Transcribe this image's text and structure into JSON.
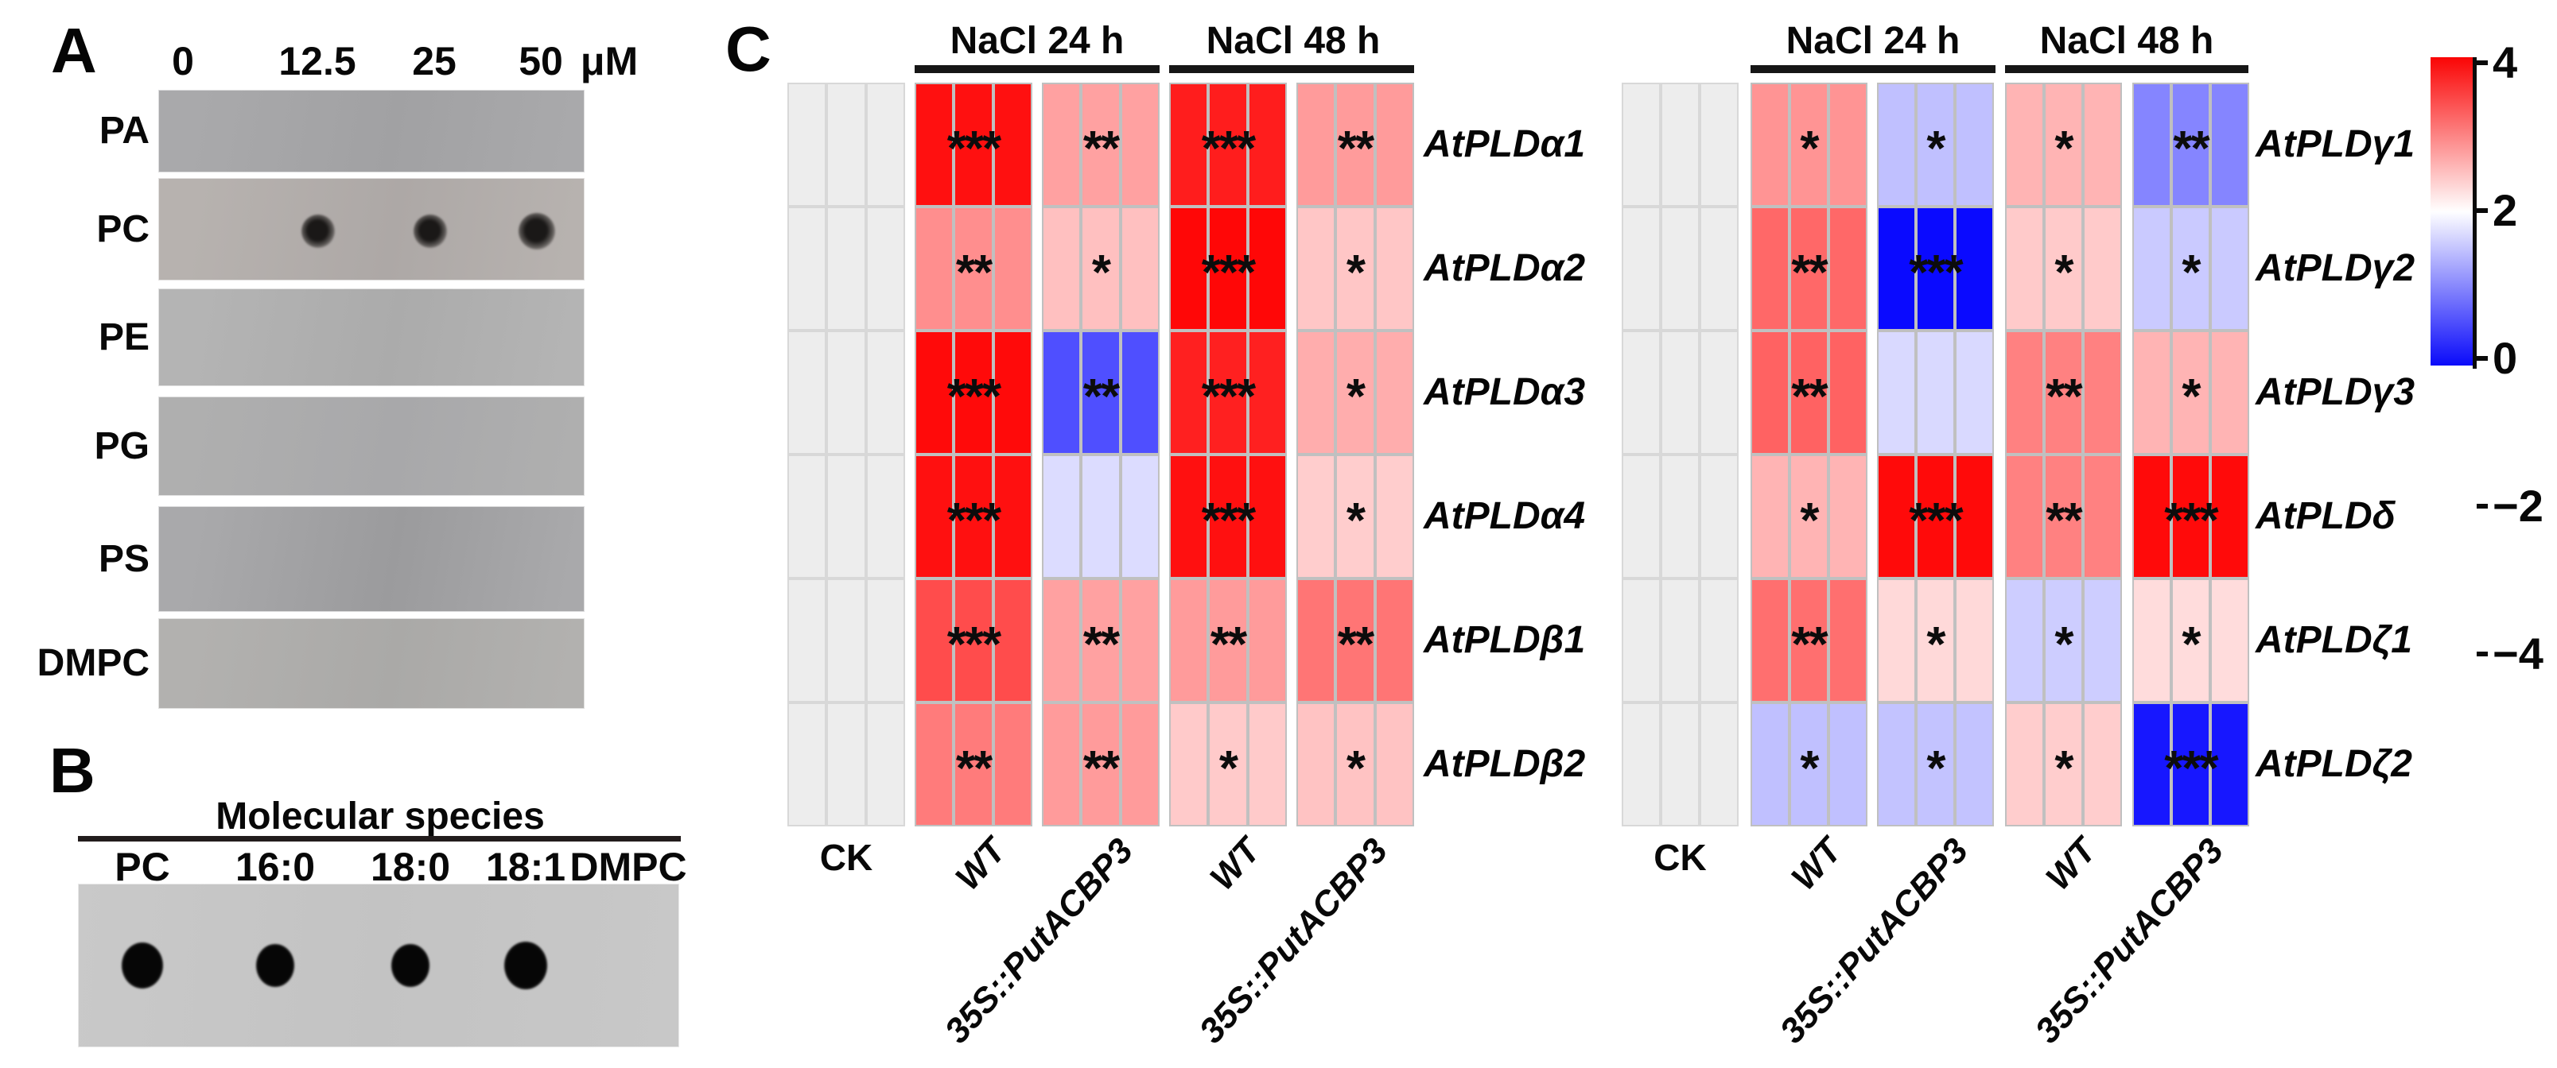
{
  "panel_a": {
    "label": "A",
    "unit_label": "μM",
    "concentrations": [
      "0",
      "12.5",
      "25",
      "50"
    ],
    "rows": [
      {
        "name": "PA",
        "dot_concentrations": []
      },
      {
        "name": "PC",
        "dot_concentrations": [
          "12.5",
          "25",
          "50"
        ]
      },
      {
        "name": "PE",
        "dot_concentrations": []
      },
      {
        "name": "PG",
        "dot_concentrations": []
      },
      {
        "name": "PS",
        "dot_concentrations": []
      },
      {
        "name": "DMPC",
        "dot_concentrations": []
      }
    ]
  },
  "panel_b": {
    "label": "B",
    "title": "Molecular species",
    "columns": [
      "PC",
      "16:0",
      "18:0",
      "18:1",
      "DMPC"
    ],
    "dot_columns": [
      "PC",
      "16:0",
      "18:0",
      "18:1"
    ]
  },
  "panel_c": {
    "label": "C",
    "condition_headers": [
      "NaCl 24 h",
      "NaCl 48 h"
    ],
    "bottom_labels": [
      "CK",
      "WT",
      "35S::PutACBP3",
      "WT",
      "35S::PutACBP3"
    ],
    "baseline_color": "#ededed",
    "colorbar": {
      "tick_labels": [
        "4",
        "2",
        "0",
        "−2",
        "−4"
      ],
      "tick_values": [
        4,
        2,
        0,
        -2,
        -4
      ],
      "max_color": "#fa0505",
      "mid_color": "#ffffff",
      "min_color": "#0a0afa"
    }
  },
  "chart_data": [
    {
      "type": "heatmap",
      "position": "left",
      "value_range": [
        -4,
        4
      ],
      "replicates_per_cell": 3,
      "columns": [
        "CK",
        "WT (NaCl 24 h)",
        "35S::PutACBP3 (NaCl 24 h)",
        "WT (NaCl 48 h)",
        "35S::PutACBP3 (NaCl 48 h)"
      ],
      "rows": [
        "AtPLDα1",
        "AtPLDα2",
        "AtPLDα3",
        "AtPLDα4",
        "AtPLDβ1",
        "AtPLDβ2"
      ],
      "values": [
        [
          null,
          3.8,
          1.5,
          3.6,
          1.6
        ],
        [
          null,
          1.8,
          1.0,
          3.95,
          0.9
        ],
        [
          null,
          3.9,
          -2.8,
          3.55,
          1.3
        ],
        [
          null,
          3.8,
          -0.55,
          3.8,
          0.8
        ],
        [
          null,
          2.85,
          1.5,
          1.6,
          2.2
        ],
        [
          null,
          2.1,
          1.6,
          0.85,
          0.95
        ]
      ],
      "significance": [
        [
          "",
          "***",
          "**",
          "***",
          "**"
        ],
        [
          "",
          "**",
          "*",
          "***",
          "*"
        ],
        [
          "",
          "***",
          "**",
          "***",
          "*"
        ],
        [
          "",
          "***",
          "",
          "***",
          "*"
        ],
        [
          "",
          "***",
          "**",
          "**",
          "**"
        ],
        [
          "",
          "**",
          "**",
          "*",
          "*"
        ]
      ]
    },
    {
      "type": "heatmap",
      "position": "right",
      "value_range": [
        -4,
        4
      ],
      "replicates_per_cell": 3,
      "columns": [
        "CK",
        "WT (NaCl 24 h)",
        "35S::PutACBP3 (NaCl 24 h)",
        "WT (NaCl 48 h)",
        "35S::PutACBP3 (NaCl 48 h)"
      ],
      "rows": [
        "AtPLDγ1",
        "AtPLDγ2",
        "AtPLDγ3",
        "AtPLDδ",
        "AtPLDζ1",
        "AtPLDζ2"
      ],
      "values": [
        [
          null,
          1.7,
          -1.0,
          1.2,
          -1.95
        ],
        [
          null,
          2.4,
          -3.9,
          0.85,
          -0.85
        ],
        [
          null,
          2.5,
          -0.6,
          2.0,
          1.2
        ],
        [
          null,
          1.2,
          3.9,
          2.0,
          3.9
        ],
        [
          null,
          2.3,
          0.6,
          -0.8,
          0.55
        ],
        [
          null,
          -1.0,
          -0.95,
          0.8,
          -3.7
        ]
      ],
      "significance": [
        [
          "",
          "*",
          "*",
          "*",
          "**"
        ],
        [
          "",
          "**",
          "***",
          "*",
          "*"
        ],
        [
          "",
          "**",
          "",
          "**",
          "*"
        ],
        [
          "",
          "*",
          "***",
          "**",
          "***"
        ],
        [
          "",
          "**",
          "*",
          "*",
          "*"
        ],
        [
          "",
          "*",
          "*",
          "*",
          "***"
        ]
      ]
    }
  ]
}
